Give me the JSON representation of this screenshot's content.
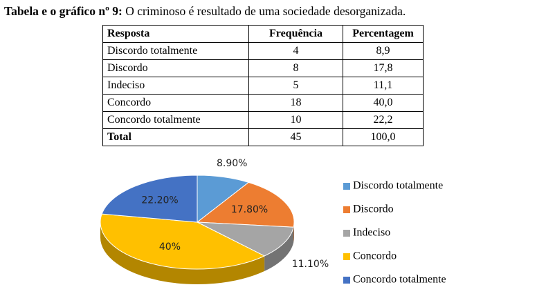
{
  "title": {
    "label": "Tabela e o gráfico nº 9:",
    "text": "O criminoso é resultado de uma sociedade desorganizada."
  },
  "table": {
    "header": [
      "Resposta",
      "Frequência",
      "Percentagem"
    ],
    "rows": [
      [
        "Discordo totalmente",
        "4",
        "8,9"
      ],
      [
        "Discordo",
        "8",
        "17,8"
      ],
      [
        "Indeciso",
        "5",
        "11,1"
      ],
      [
        "Concordo",
        "18",
        "40,0"
      ],
      [
        "Concordo totalmente",
        "10",
        "22,2"
      ],
      [
        "Total",
        "45",
        "100,0"
      ]
    ]
  },
  "chart_data": {
    "type": "pie",
    "categories": [
      "Discordo totalmente",
      "Discordo",
      "Indeciso",
      "Concordo",
      "Concordo totalmente"
    ],
    "values": [
      8.9,
      17.8,
      11.1,
      40,
      22.2
    ],
    "value_labels": [
      "8.90%",
      "17.80%",
      "11.10%",
      "40%",
      "22.20%"
    ],
    "colors": [
      "#5b9bd5",
      "#ed7d31",
      "#a5a5a5",
      "#ffc000",
      "#4472c4"
    ],
    "legend": "right"
  }
}
